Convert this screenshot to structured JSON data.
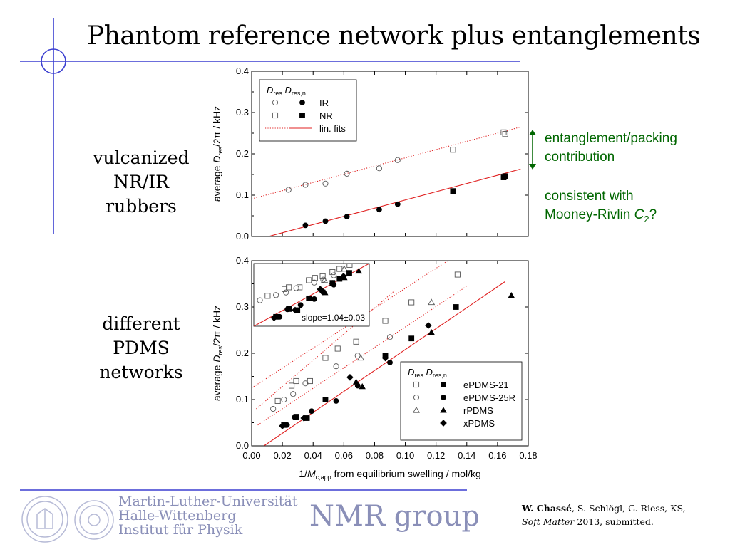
{
  "title": "Phantom reference network plus entanglements",
  "labels": {
    "top_left": [
      "vulcanized",
      "NR/IR",
      "rubbers"
    ],
    "bottom_left": [
      "different",
      "PDMS",
      "networks"
    ],
    "note1": [
      "entanglement/packing",
      "contribution"
    ],
    "note2_line1": "consistent with",
    "note2_line2_prefix": "Mooney-Rivlin ",
    "note2_italic": "C",
    "note2_sub": "2",
    "note2_suffix": "?"
  },
  "footer": {
    "university": [
      "Martin-Luther-Universität",
      "Halle-Wittenberg",
      "Institut für Physik"
    ],
    "group": "NMR group",
    "citation_author_bold": "W. Chassé",
    "citation_rest": ", S. Schlögl, G. Riess, KS,",
    "citation_journal": "Soft Matter",
    "citation_tail": " 2013, submitted."
  },
  "colors": {
    "accent": "#3b3fd0",
    "footer": "#8a8fb8",
    "note": "#006600",
    "fit": "#e02020"
  },
  "chart_data": [
    {
      "type": "scatter",
      "xlim": [
        0.0,
        0.18
      ],
      "ylim": [
        0.0,
        0.4
      ],
      "yticks": [
        "0.0",
        "0.1",
        "0.2",
        "0.3",
        "0.4"
      ],
      "ylabel": {
        "prefix": "average ",
        "italic": "D",
        "sub": "res",
        "suffix": "/2π  /  kHz"
      },
      "legend": {
        "placement": "top-left",
        "col1": "D",
        "col1_sub": "res",
        "col2": "D",
        "col2_sub": "res,n",
        "entries": [
          "IR",
          "NR",
          "lin. fits"
        ]
      },
      "series": [
        {
          "name": "IR",
          "kind": "res",
          "marker": "circle-open",
          "x": [
            0.024,
            0.035,
            0.048,
            0.062,
            0.083,
            0.095
          ],
          "y": [
            0.113,
            0.125,
            0.128,
            0.152,
            0.165,
            0.185
          ]
        },
        {
          "name": "IR",
          "kind": "res,n",
          "marker": "circle-filled",
          "x": [
            0.035,
            0.048,
            0.062,
            0.083,
            0.095
          ],
          "y": [
            0.027,
            0.037,
            0.048,
            0.065,
            0.078
          ]
        },
        {
          "name": "NR",
          "kind": "res",
          "marker": "square-open",
          "x": [
            0.131,
            0.164,
            0.165
          ],
          "y": [
            0.21,
            0.252,
            0.248
          ]
        },
        {
          "name": "NR",
          "kind": "res,n",
          "marker": "square-filled",
          "x": [
            0.131,
            0.164,
            0.165
          ],
          "y": [
            0.11,
            0.143,
            0.146
          ]
        }
      ],
      "fits": [
        {
          "style": "dotted",
          "x": [
            0.0,
            0.175
          ],
          "y": [
            0.091,
            0.265
          ]
        },
        {
          "style": "solid",
          "x": [
            0.011,
            0.175
          ],
          "y": [
            0.0,
            0.163
          ]
        }
      ]
    },
    {
      "type": "scatter",
      "xlim": [
        0.0,
        0.18
      ],
      "ylim": [
        0.0,
        0.4
      ],
      "xticks": [
        "0.00",
        "0.02",
        "0.04",
        "0.06",
        "0.08",
        "0.10",
        "0.12",
        "0.14",
        "0.16",
        "0.18"
      ],
      "yticks": [
        "0.0",
        "0.1",
        "0.2",
        "0.3",
        "0.4"
      ],
      "xlabel": {
        "prefix": "1/",
        "italic": "M",
        "sub": "c,app",
        "suffix": " from equilibrium swelling  /  mol/kg"
      },
      "ylabel": {
        "prefix": "average ",
        "italic": "D",
        "sub": "res",
        "suffix": "/2π  /  kHz"
      },
      "legend": {
        "placement": "bottom-right",
        "col1": "D",
        "col1_sub": "res",
        "col2": "D",
        "col2_sub": "res,n",
        "entries": [
          "ePDMS-21",
          "ePDMS-25R",
          "rPDMS",
          "xPDMS"
        ]
      },
      "inset_annotation": "slope=1.04±0.03",
      "series": [
        {
          "name": "ePDMS-21",
          "kind": "res",
          "marker": "square-open",
          "x": [
            0.017,
            0.026,
            0.029,
            0.038,
            0.048,
            0.056,
            0.068,
            0.087,
            0.104,
            0.134
          ],
          "y": [
            0.097,
            0.13,
            0.14,
            0.14,
            0.19,
            0.21,
            0.225,
            0.27,
            0.31,
            0.37
          ]
        },
        {
          "name": "ePDMS-25R",
          "kind": "res",
          "marker": "circle-open",
          "x": [
            0.014,
            0.021,
            0.027,
            0.035,
            0.055,
            0.069,
            0.09
          ],
          "y": [
            0.08,
            0.1,
            0.112,
            0.135,
            0.172,
            0.195,
            0.235
          ]
        },
        {
          "name": "rPDMS",
          "kind": "res",
          "marker": "triangle-open",
          "x": [
            0.071,
            0.117
          ],
          "y": [
            0.19,
            0.31
          ]
        },
        {
          "name": "ePDMS-21",
          "kind": "res,n",
          "marker": "square-filled",
          "x": [
            0.021,
            0.029,
            0.036,
            0.048,
            0.087,
            0.104,
            0.133
          ],
          "y": [
            0.045,
            0.063,
            0.06,
            0.1,
            0.195,
            0.232,
            0.3
          ]
        },
        {
          "name": "ePDMS-25R",
          "kind": "res,n",
          "marker": "circle-filled",
          "x": [
            0.023,
            0.028,
            0.039,
            0.055,
            0.069,
            0.09
          ],
          "y": [
            0.045,
            0.062,
            0.075,
            0.097,
            0.13,
            0.18
          ]
        },
        {
          "name": "rPDMS",
          "kind": "res,n",
          "marker": "triangle-filled",
          "x": [
            0.068,
            0.072,
            0.117,
            0.169
          ],
          "y": [
            0.138,
            0.128,
            0.245,
            0.325
          ]
        },
        {
          "name": "xPDMS",
          "kind": "res,n",
          "marker": "diamond-filled",
          "x": [
            0.02,
            0.034,
            0.064,
            0.087,
            0.115
          ],
          "y": [
            0.043,
            0.06,
            0.148,
            0.19,
            0.26
          ]
        }
      ],
      "fits": [
        {
          "style": "dotted",
          "x": [
            0.003,
            0.093
          ],
          "y": [
            0.08,
            0.335
          ]
        },
        {
          "style": "dotted",
          "x": [
            0.004,
            0.14
          ],
          "y": [
            0.045,
            0.345
          ]
        },
        {
          "style": "dotted",
          "x": [
            0.0,
            0.13
          ],
          "y": [
            0.125,
            0.405
          ]
        },
        {
          "style": "solid",
          "x": [
            0.008,
            0.165
          ],
          "y": [
            0.0,
            0.355
          ]
        }
      ]
    }
  ]
}
